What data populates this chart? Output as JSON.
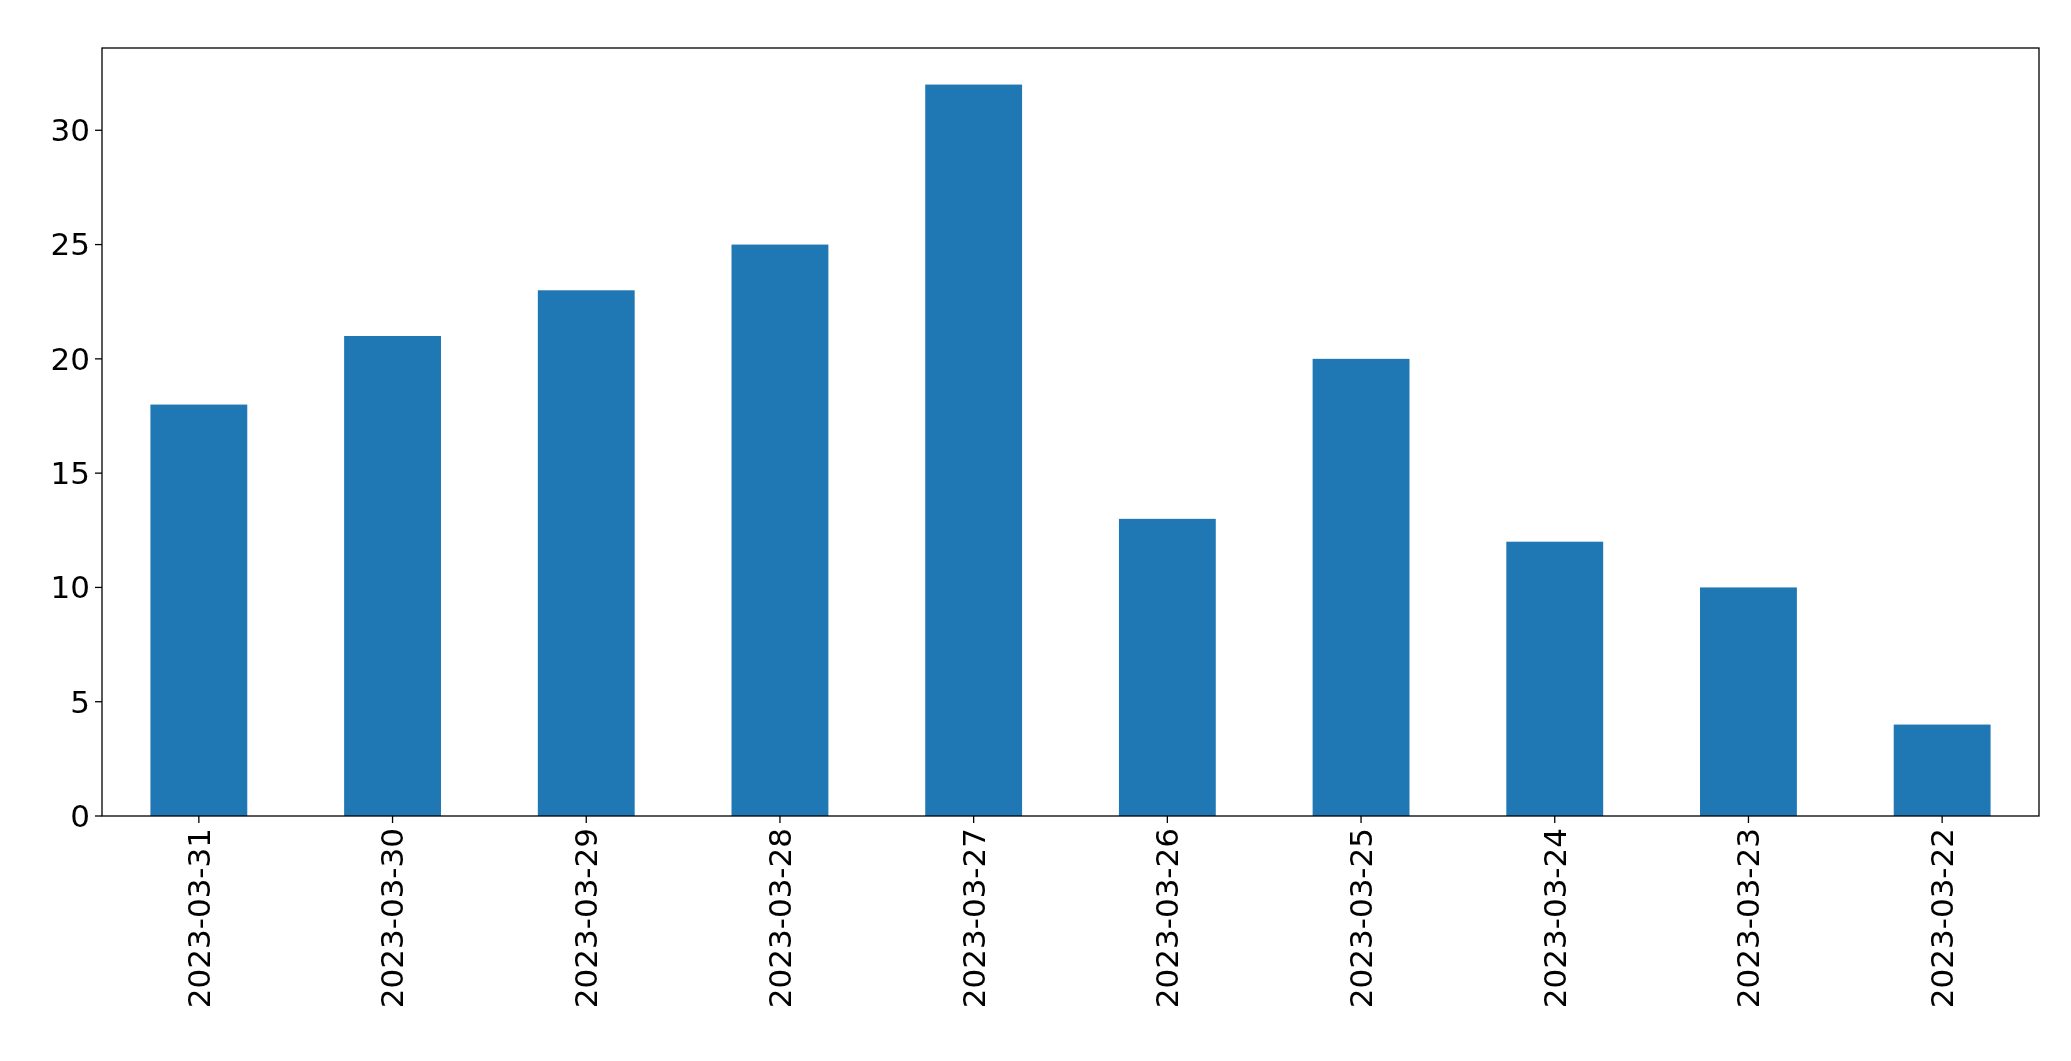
{
  "chart_data": {
    "type": "bar",
    "categories": [
      "2023-03-31",
      "2023-03-30",
      "2023-03-29",
      "2023-03-28",
      "2023-03-27",
      "2023-03-26",
      "2023-03-25",
      "2023-03-24",
      "2023-03-23",
      "2023-03-22"
    ],
    "values": [
      18,
      21,
      23,
      25,
      32,
      13,
      20,
      12,
      10,
      4
    ],
    "color": "#1f77b4",
    "ylim": [
      0,
      33.6
    ],
    "yticks": [
      0,
      5,
      10,
      15,
      20,
      25,
      30
    ],
    "grid": false
  }
}
